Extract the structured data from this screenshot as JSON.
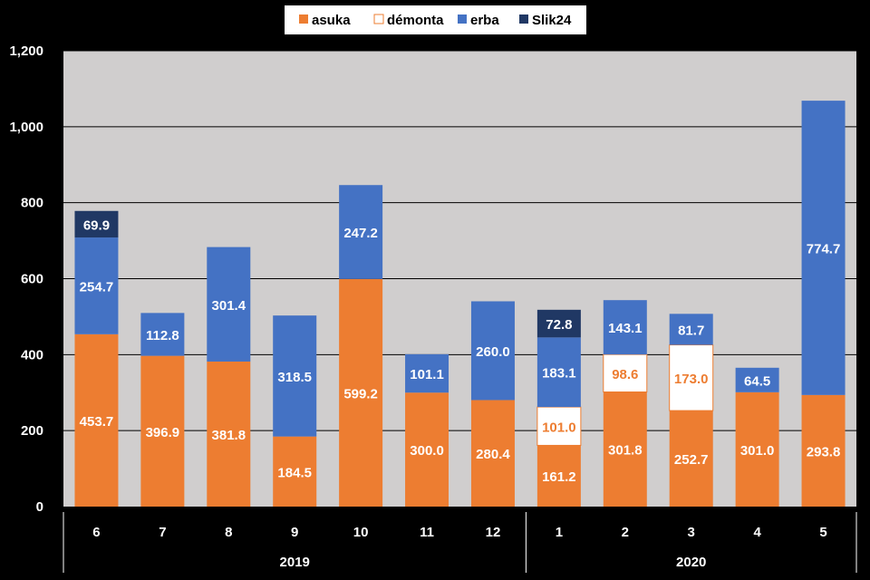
{
  "chart_data": {
    "type": "bar",
    "stacked": true,
    "title": "",
    "xlabel": "",
    "ylabel": "",
    "ylim": [
      0,
      1200
    ],
    "yticks": [
      "0",
      "200",
      "400",
      "600",
      "800",
      "1,000",
      "1,200"
    ],
    "ytick_values": [
      0,
      200,
      400,
      600,
      800,
      1000,
      1200
    ],
    "grid": true,
    "legend_position": "top-center",
    "categories": [
      "6",
      "7",
      "8",
      "9",
      "10",
      "11",
      "12",
      "1",
      "2",
      "3",
      "4",
      "5"
    ],
    "groups": [
      {
        "label": "2019",
        "from": 0,
        "to": 6
      },
      {
        "label": "2020",
        "from": 7,
        "to": 11
      }
    ],
    "series": [
      {
        "name": "asuka",
        "color": "#ED7D31",
        "values": [
          453.7,
          396.9,
          381.8,
          184.5,
          599.2,
          300.0,
          280.4,
          161.2,
          301.8,
          252.7,
          301.0,
          293.8
        ],
        "labels": [
          "453.7",
          "396.9",
          "381.8",
          "184.5",
          "599.2",
          "300.0",
          "280.4",
          "161.2",
          "301.8",
          "252.7",
          "301.0",
          "293.8"
        ]
      },
      {
        "name": "démonta",
        "color": "#FFFFFF",
        "values": [
          null,
          null,
          null,
          null,
          null,
          null,
          null,
          101.0,
          98.6,
          173.0,
          null,
          null
        ],
        "labels": [
          "",
          "",
          "",
          "",
          "",
          "",
          "",
          "101.0",
          "98.6",
          "173.0",
          "",
          ""
        ]
      },
      {
        "name": "erba",
        "color": "#4472C4",
        "values": [
          254.7,
          112.8,
          301.4,
          318.5,
          247.2,
          101.1,
          260.0,
          183.1,
          143.1,
          81.7,
          64.5,
          774.7
        ],
        "labels": [
          "254.7",
          "112.8",
          "301.4",
          "318.5",
          "247.2",
          "101.1",
          "260.0",
          "183.1",
          "143.1",
          "81.7",
          "64.5",
          "774.7"
        ]
      },
      {
        "name": "Slik24",
        "color": "#203864",
        "values": [
          69.9,
          null,
          null,
          null,
          null,
          null,
          null,
          72.8,
          null,
          null,
          null,
          null
        ],
        "labels": [
          "69.9",
          "",
          "",
          "",
          "",
          "",
          "",
          "72.8",
          "",
          "",
          "",
          ""
        ]
      }
    ],
    "colors": {
      "plot_bg": "#D0CECE",
      "background": "#000000",
      "grid": "#000000",
      "demonta_border": "#ED7D31",
      "demonta_text": "#ED7D31"
    }
  }
}
